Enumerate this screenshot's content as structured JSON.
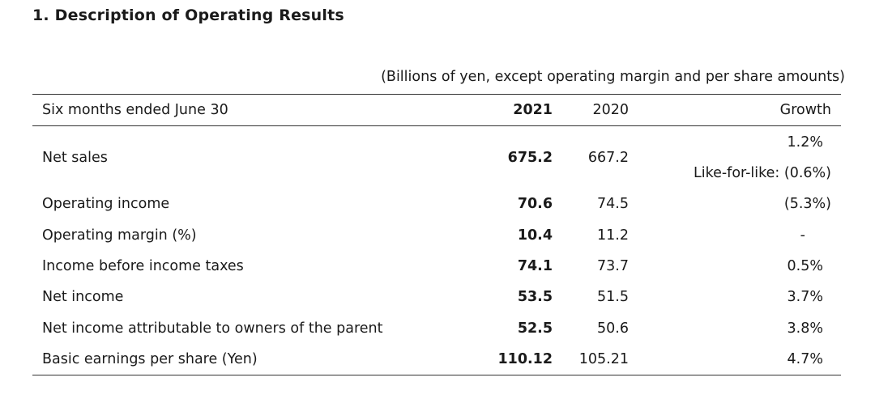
{
  "heading": "1.  Description of Operating Results",
  "unit_note": "(Billions of yen, except operating margin and per share amounts)",
  "columns": {
    "period": "Six months ended June 30",
    "y2021": "2021",
    "y2020": "2020",
    "growth": "Growth"
  },
  "rows": [
    {
      "label": "Net sales",
      "v2021": "675.2",
      "v2020": "667.2",
      "growth": "1.2%",
      "growth_note": "Like-for-like: (0.6%)"
    },
    {
      "label": "Operating income",
      "v2021": "70.6",
      "v2020": "74.5",
      "growth": "(5.3%)"
    },
    {
      "label": "Operating margin (%)",
      "v2021": "10.4",
      "v2020": "11.2",
      "growth": "-"
    },
    {
      "label": "Income before income taxes",
      "v2021": "74.1",
      "v2020": "73.7",
      "growth": "0.5%"
    },
    {
      "label": "Net income",
      "v2021": "53.5",
      "v2020": "51.5",
      "growth": "3.7%"
    },
    {
      "label": "Net income attributable to owners of the parent",
      "v2021": "52.5",
      "v2020": "50.6",
      "growth": "3.8%"
    },
    {
      "label": "Basic earnings per share (Yen)",
      "v2021": "110.12",
      "v2020": "105.21",
      "growth": "4.7%"
    }
  ]
}
